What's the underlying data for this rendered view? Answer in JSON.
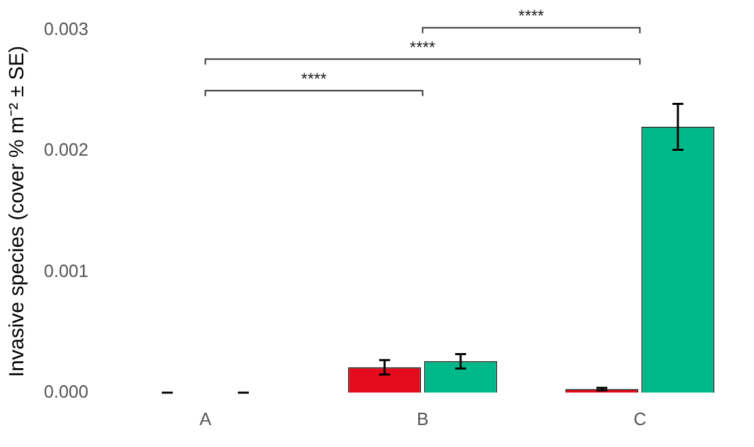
{
  "chart_data": {
    "type": "bar",
    "categories": [
      "A",
      "B",
      "C"
    ],
    "ylabel": "Invasive species (cover % m⁻² ± SE)",
    "ylim": [
      0,
      0.003
    ],
    "yticks": [
      {
        "value": 0,
        "label": "0.000"
      },
      {
        "value": 0.001,
        "label": "0.001"
      },
      {
        "value": 0.002,
        "label": "0.002"
      },
      {
        "value": 0.003,
        "label": "0.003"
      }
    ],
    "grid": false,
    "legend": false,
    "series": [
      {
        "color": "#e30b1c",
        "values": [
          0,
          0.00021,
          3e-05
        ],
        "errors": [
          0,
          6e-05,
          1e-05
        ]
      },
      {
        "color": "#00b98a",
        "values": [
          0,
          0.00026,
          0.0022
        ],
        "errors": [
          0,
          6e-05,
          0.00019
        ]
      }
    ],
    "annotations": [
      "****",
      "****",
      "****"
    ]
  }
}
